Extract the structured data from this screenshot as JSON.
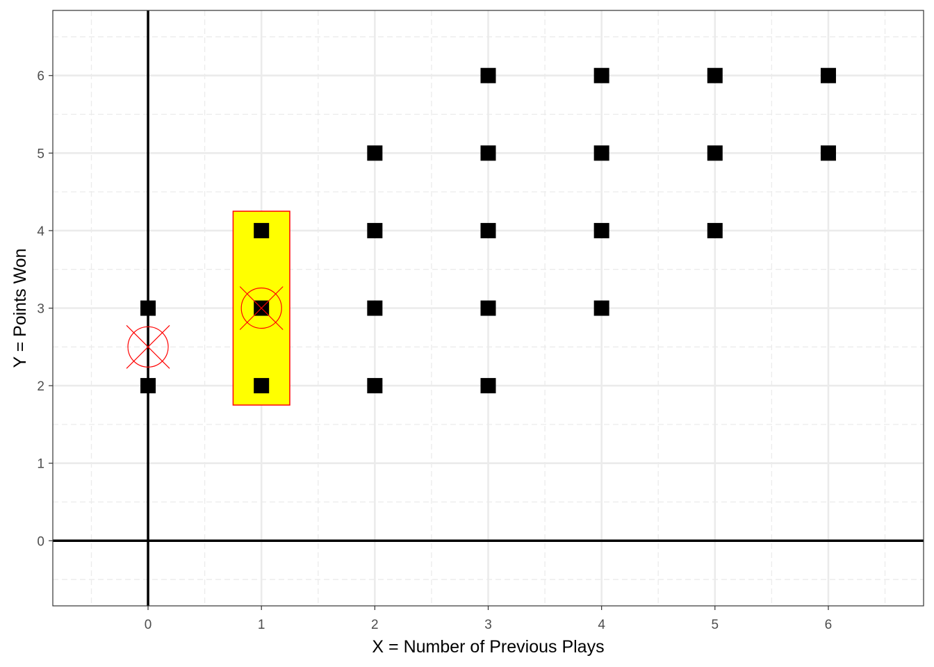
{
  "chart_data": {
    "type": "scatter",
    "title": "",
    "xlabel": "X = Number of Previous Plays",
    "ylabel": "Y = Points Won",
    "xlim": [
      -0.84,
      6.84
    ],
    "ylim": [
      -0.84,
      6.84
    ],
    "x_ticks": [
      0,
      1,
      2,
      3,
      4,
      5,
      6
    ],
    "y_ticks": [
      0,
      1,
      2,
      3,
      4,
      5,
      6
    ],
    "grid": true,
    "reference_lines": {
      "x": 0,
      "y": 0
    },
    "points": [
      {
        "x": 0,
        "y": 2
      },
      {
        "x": 0,
        "y": 3
      },
      {
        "x": 1,
        "y": 2
      },
      {
        "x": 1,
        "y": 3
      },
      {
        "x": 1,
        "y": 4
      },
      {
        "x": 2,
        "y": 2
      },
      {
        "x": 2,
        "y": 3
      },
      {
        "x": 2,
        "y": 4
      },
      {
        "x": 2,
        "y": 5
      },
      {
        "x": 3,
        "y": 2
      },
      {
        "x": 3,
        "y": 3
      },
      {
        "x": 3,
        "y": 4
      },
      {
        "x": 3,
        "y": 5
      },
      {
        "x": 3,
        "y": 6
      },
      {
        "x": 4,
        "y": 3
      },
      {
        "x": 4,
        "y": 4
      },
      {
        "x": 4,
        "y": 5
      },
      {
        "x": 4,
        "y": 6
      },
      {
        "x": 5,
        "y": 4
      },
      {
        "x": 5,
        "y": 5
      },
      {
        "x": 5,
        "y": 6
      },
      {
        "x": 6,
        "y": 5
      },
      {
        "x": 6,
        "y": 6
      }
    ],
    "conditional_means": [
      {
        "x": 0,
        "y": 2.5
      },
      {
        "x": 1,
        "y": 3
      }
    ],
    "highlight_rect": {
      "xmin": 0.75,
      "xmax": 1.25,
      "ymin": 1.75,
      "ymax": 4.25
    },
    "colors": {
      "points": "#000000",
      "highlight_fill": "#ffff00",
      "highlight_border": "#ff0000",
      "mean_marker": "#ff0000",
      "grid": "#ebebeb",
      "panel_border": "#333333",
      "reference_line": "#000000"
    }
  }
}
